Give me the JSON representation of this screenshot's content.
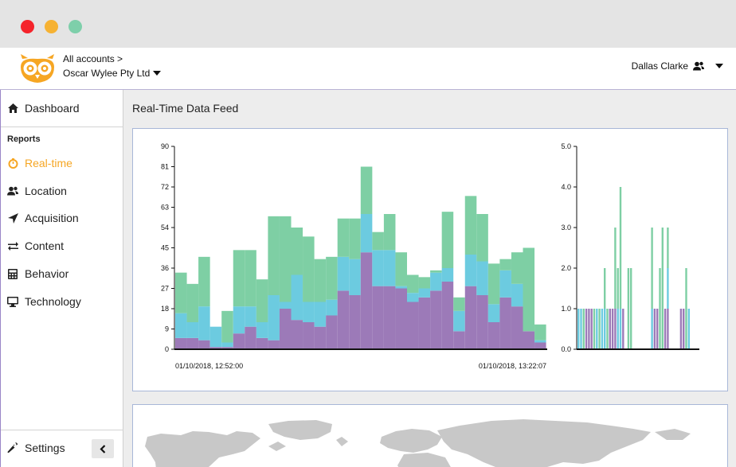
{
  "window": {
    "controls": [
      "close",
      "minimize",
      "maximize"
    ]
  },
  "header": {
    "logo_icon": "owl-logo-icon",
    "accounts_link": "All accounts >",
    "account_name": "Oscar Wylee Pty Ltd",
    "user_name": "Dallas Clarke",
    "user_icon": "users-icon"
  },
  "sidebar": {
    "dashboard_label": "Dashboard",
    "section_label": "Reports",
    "items": [
      {
        "label": "Real-time",
        "icon": "stopwatch-icon",
        "active": true
      },
      {
        "label": "Location",
        "icon": "users-icon",
        "active": false
      },
      {
        "label": "Acquisition",
        "icon": "location-arrow-icon",
        "active": false
      },
      {
        "label": "Content",
        "icon": "exchange-icon",
        "active": false
      },
      {
        "label": "Behavior",
        "icon": "calculator-icon",
        "active": false
      },
      {
        "label": "Technology",
        "icon": "desktop-icon",
        "active": false
      }
    ],
    "settings_label": "Settings",
    "collapse_icon": "chevron-left-icon"
  },
  "main": {
    "title": "Real-Time Data Feed"
  },
  "colors": {
    "green": "#7ecfa4",
    "blue": "#6ccbe0",
    "purple": "#9c7ab8",
    "accent": "#f6a623"
  },
  "chart_data": [
    {
      "type": "bar",
      "stacked": true,
      "x_start_label": "01/10/2018, 12:52:00",
      "x_end_label": "01/10/2018, 13:22:07",
      "yticks": [
        "0",
        "9",
        "18",
        "27",
        "36",
        "45",
        "54",
        "63",
        "72",
        "81",
        "90"
      ],
      "ylim": [
        0,
        90
      ],
      "series": [
        {
          "color": "#9c7ab8",
          "values": [
            5,
            5,
            4,
            1,
            1,
            7,
            10,
            5,
            4,
            18,
            13,
            12,
            10,
            15,
            26,
            24,
            43,
            28,
            28,
            27,
            21,
            23,
            26,
            30,
            8,
            28,
            24,
            12,
            23,
            19,
            8,
            3
          ]
        },
        {
          "color": "#6ccbe0",
          "values": [
            11,
            7,
            15,
            9,
            2,
            12,
            9,
            7,
            20,
            3,
            20,
            9,
            11,
            7,
            15,
            16,
            17,
            16,
            16,
            1,
            4,
            4,
            8,
            6,
            9,
            14,
            15,
            8,
            12,
            10,
            0,
            1
          ]
        },
        {
          "color": "#7ecfa4",
          "values": [
            18,
            17,
            22,
            0,
            14,
            25,
            25,
            19,
            35,
            38,
            21,
            29,
            19,
            19,
            17,
            18,
            21,
            8,
            16,
            15,
            8,
            5,
            1,
            25,
            6,
            26,
            21,
            18,
            5,
            14,
            37,
            7
          ]
        }
      ]
    },
    {
      "type": "bar",
      "stacked": true,
      "yticks": [
        "0.0",
        "1.0",
        "2.0",
        "3.0",
        "4.0",
        "5.0"
      ],
      "ylim": [
        0,
        5
      ],
      "series": [
        {
          "color": "#9c7ab8",
          "values": [
            0,
            0,
            0,
            1,
            1,
            1,
            0,
            0,
            0,
            0,
            0,
            0,
            1,
            1,
            1,
            0,
            0,
            1,
            0,
            0,
            0,
            0,
            0,
            0,
            0,
            0,
            0,
            0,
            0,
            1,
            1,
            0,
            0,
            1,
            1,
            0,
            0,
            0,
            0,
            1,
            1,
            0,
            0
          ]
        },
        {
          "color": "#6ccbe0",
          "values": [
            1,
            1,
            0,
            0,
            0,
            0,
            0,
            1,
            0,
            1,
            1,
            0,
            0,
            0,
            0,
            1,
            1,
            0,
            0,
            0,
            0,
            0,
            0,
            0,
            0,
            0,
            0,
            0,
            1,
            0,
            0,
            0,
            0,
            0,
            1,
            0,
            0,
            0,
            0,
            0,
            0,
            0,
            1
          ]
        },
        {
          "color": "#7ecfa4",
          "values": [
            0,
            0,
            1,
            0,
            0,
            0,
            1,
            0,
            1,
            0,
            1,
            1,
            0,
            0,
            2,
            1,
            3,
            0,
            0,
            2,
            2,
            0,
            0,
            0,
            0,
            0,
            0,
            0,
            2,
            0,
            0,
            2,
            3,
            0,
            1,
            0,
            0,
            0,
            0,
            0,
            0,
            2,
            0
          ]
        }
      ]
    }
  ]
}
